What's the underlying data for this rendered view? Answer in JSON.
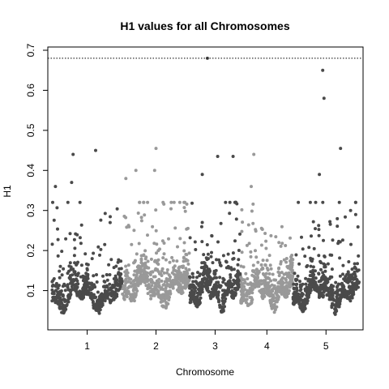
{
  "chart_data": {
    "type": "scatter",
    "title": "H1 values for all Chromosomes",
    "xlabel": "Chromosome",
    "ylabel": "H1",
    "grid": false,
    "threshold": 0.68,
    "ylim": [
      0.0,
      0.7
    ],
    "y_ticks": [
      0.1,
      0.2,
      0.3,
      0.4,
      0.5,
      0.6,
      0.7
    ],
    "chromosomes": [
      {
        "name": "1",
        "color": "#4a4a4a",
        "span": [
          0.0,
          0.23
        ],
        "base": 0.09,
        "spread": 0.03,
        "n": 520
      },
      {
        "name": "2",
        "color": "#999999",
        "span": [
          0.23,
          0.448
        ],
        "base": 0.11,
        "spread": 0.04,
        "n": 520
      },
      {
        "name": "3",
        "color": "#4a4a4a",
        "span": [
          0.448,
          0.615
        ],
        "base": 0.1,
        "spread": 0.035,
        "n": 420
      },
      {
        "name": "4",
        "color": "#999999",
        "span": [
          0.615,
          0.785
        ],
        "base": 0.1,
        "spread": 0.035,
        "n": 420
      },
      {
        "name": "5",
        "color": "#4a4a4a",
        "span": [
          0.785,
          1.0
        ],
        "base": 0.095,
        "spread": 0.035,
        "n": 520
      }
    ],
    "outliers": [
      {
        "chrom": "1",
        "pos": 0.3,
        "value": 0.44
      },
      {
        "chrom": "1",
        "pos": 0.62,
        "value": 0.45
      },
      {
        "chrom": "1",
        "pos": 0.05,
        "value": 0.36
      },
      {
        "chrom": "1",
        "pos": 0.28,
        "value": 0.37
      },
      {
        "chrom": "2",
        "pos": 0.05,
        "value": 0.38
      },
      {
        "chrom": "2",
        "pos": 0.2,
        "value": 0.4
      },
      {
        "chrom": "2",
        "pos": 0.5,
        "value": 0.455
      },
      {
        "chrom": "2",
        "pos": 0.48,
        "value": 0.4
      },
      {
        "chrom": "3",
        "pos": 0.25,
        "value": 0.39
      },
      {
        "chrom": "3",
        "pos": 0.35,
        "value": 0.68
      },
      {
        "chrom": "3",
        "pos": 0.55,
        "value": 0.435
      },
      {
        "chrom": "3",
        "pos": 0.85,
        "value": 0.435
      },
      {
        "chrom": "4",
        "pos": 0.25,
        "value": 0.44
      },
      {
        "chrom": "4",
        "pos": 0.2,
        "value": 0.36
      },
      {
        "chrom": "5",
        "pos": 0.45,
        "value": 0.65
      },
      {
        "chrom": "5",
        "pos": 0.47,
        "value": 0.58
      },
      {
        "chrom": "5",
        "pos": 0.72,
        "value": 0.455
      },
      {
        "chrom": "5",
        "pos": 0.4,
        "value": 0.39
      },
      {
        "chrom": "5",
        "pos": 0.95,
        "value": 0.29
      }
    ]
  }
}
